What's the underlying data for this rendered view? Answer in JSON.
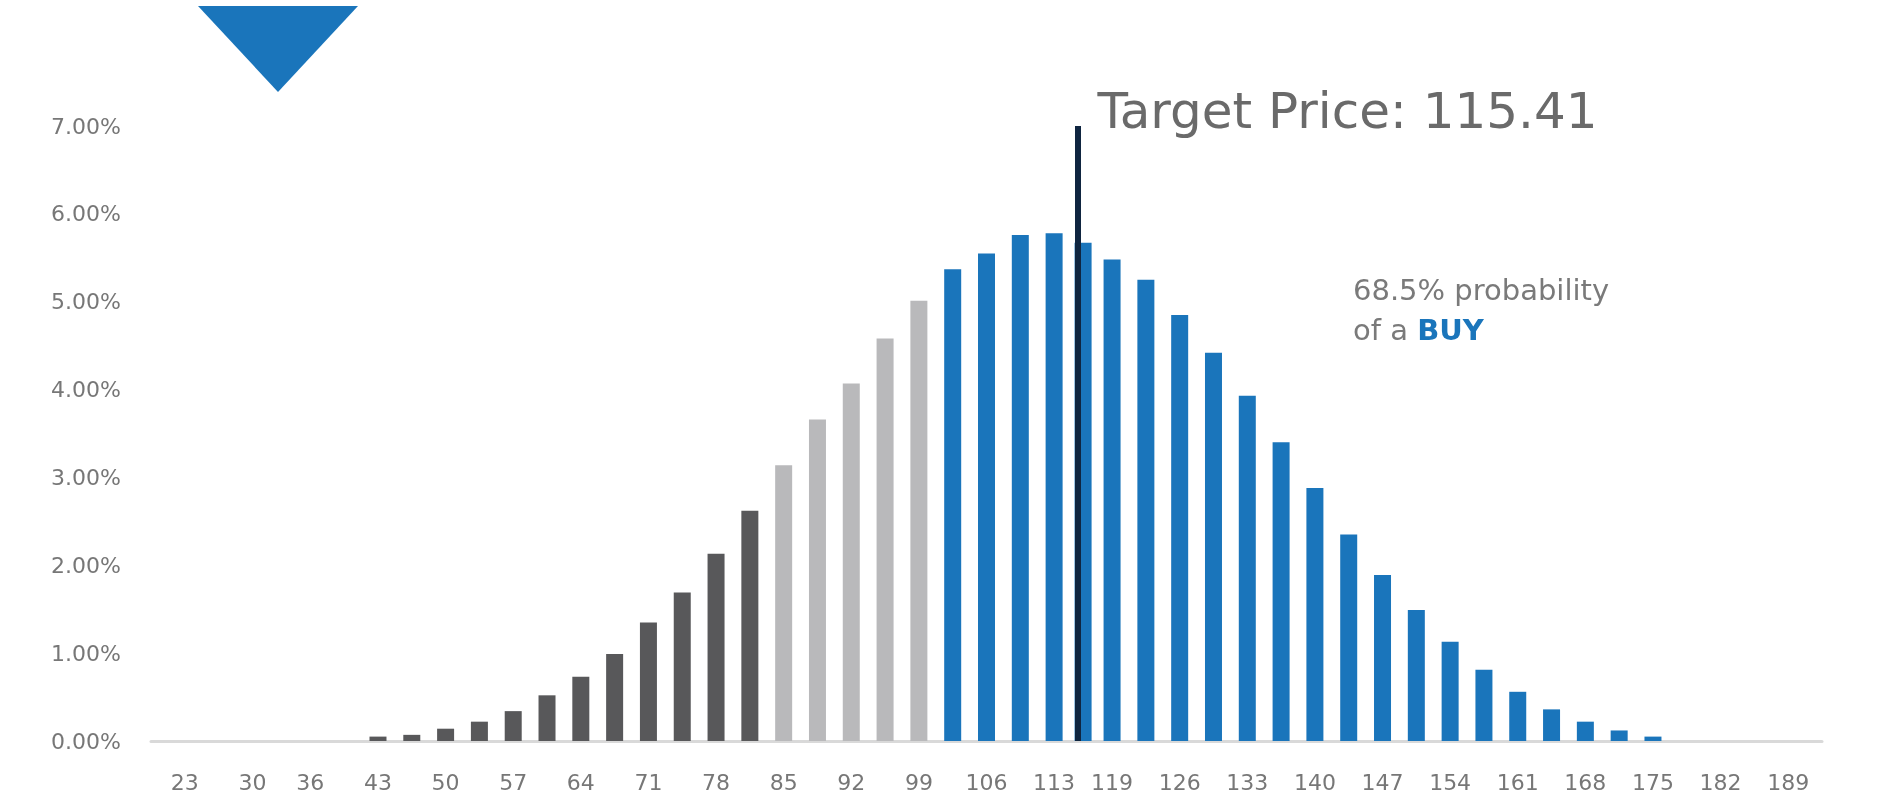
{
  "chart_data": {
    "type": "bar",
    "x": [
      23,
      26.5,
      30,
      33,
      36,
      39.5,
      43,
      46.5,
      50,
      53.5,
      57,
      60.5,
      64,
      67.5,
      71,
      74.5,
      78,
      81.5,
      85,
      88.5,
      92,
      95.5,
      99,
      102.5,
      106,
      109.5,
      113,
      116,
      119,
      122.5,
      126,
      129.5,
      133,
      136.5,
      140,
      143.5,
      147,
      150.5,
      154,
      157.5,
      161,
      164.5,
      168,
      171.5,
      175,
      178.5,
      182,
      185.5,
      189
    ],
    "values": [
      0,
      0,
      0,
      0,
      0,
      0,
      0.05,
      0.07,
      0.14,
      0.22,
      0.34,
      0.52,
      0.73,
      0.99,
      1.35,
      1.69,
      2.13,
      2.62,
      3.14,
      3.66,
      4.07,
      4.58,
      5.01,
      5.37,
      5.55,
      5.76,
      5.78,
      5.67,
      5.48,
      5.25,
      4.85,
      4.42,
      3.93,
      3.4,
      2.88,
      2.35,
      1.89,
      1.49,
      1.13,
      0.81,
      0.56,
      0.36,
      0.22,
      0.12,
      0.05,
      0,
      0,
      0,
      0
    ],
    "colors": [
      "#58585a",
      "#58585a",
      "#58585a",
      "#58585a",
      "#58585a",
      "#58585a",
      "#58585a",
      "#58585a",
      "#58585a",
      "#58585a",
      "#58585a",
      "#58585a",
      "#58585a",
      "#58585a",
      "#58585a",
      "#58585a",
      "#58585a",
      "#58585a",
      "#b9b9bb",
      "#b9b9bb",
      "#b9b9bb",
      "#b9b9bb",
      "#b9b9bb",
      "#1a75bb",
      "#1a75bb",
      "#1a75bb",
      "#1a75bb",
      "#1a75bb",
      "#1a75bb",
      "#1a75bb",
      "#1a75bb",
      "#1a75bb",
      "#1a75bb",
      "#1a75bb",
      "#1a75bb",
      "#1a75bb",
      "#1a75bb",
      "#1a75bb",
      "#1a75bb",
      "#1a75bb",
      "#1a75bb",
      "#1a75bb",
      "#1a75bb",
      "#1a75bb",
      "#1a75bb",
      "#1a75bb",
      "#1a75bb",
      "#1a75bb",
      "#1a75bb"
    ],
    "xlim": [
      19.5,
      192.5
    ],
    "xticks": [
      23,
      30,
      36,
      43,
      50,
      57,
      64,
      71,
      78,
      85,
      92,
      99,
      106,
      113,
      119,
      126,
      133,
      140,
      147,
      154,
      161,
      168,
      175,
      182,
      189
    ],
    "ylim": [
      0,
      7
    ],
    "yticks": [
      {
        "value": 0,
        "label": "0.00%"
      },
      {
        "value": 1,
        "label": "1.00%"
      },
      {
        "value": 2,
        "label": "2.00%"
      },
      {
        "value": 3,
        "label": "3.00%"
      },
      {
        "value": 4,
        "label": "4.00%"
      },
      {
        "value": 5,
        "label": "5.00%"
      },
      {
        "value": 6,
        "label": "6.00%"
      },
      {
        "value": 7,
        "label": "7.00%"
      }
    ],
    "ref_lines": [
      {
        "axis": "x",
        "value": 115.41,
        "label": "Target Price: 115.41",
        "color": "#0f2540"
      }
    ],
    "annotations": [
      "68.5% probability\nof a BUY"
    ],
    "grid": false
  }
}
